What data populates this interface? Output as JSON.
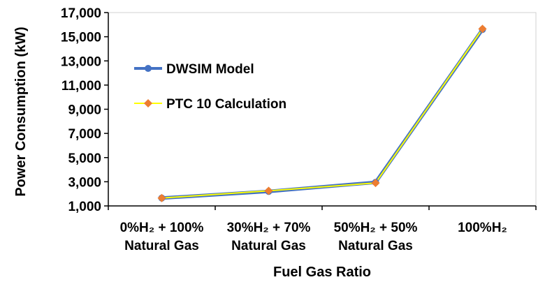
{
  "chart_data": {
    "type": "line",
    "title": "",
    "xlabel": "Fuel Gas Ratio",
    "ylabel": "Power Consumption (kW)",
    "ylim": [
      1000,
      17000
    ],
    "yticks": [
      1000,
      3000,
      5000,
      7000,
      9000,
      11000,
      13000,
      15000,
      17000
    ],
    "ytick_labels": [
      "1,000",
      "3,000",
      "5,000",
      "7,000",
      "9,000",
      "11,000",
      "13,000",
      "15,000",
      "17,000"
    ],
    "categories": [
      {
        "line1": "0%H₂ + 100%",
        "line2": "Natural Gas"
      },
      {
        "line1": "30%H₂ + 70%",
        "line2": "Natural Gas"
      },
      {
        "line1": "50%H₂ + 50%",
        "line2": "Natural Gas"
      },
      {
        "line1": "100%H₂",
        "line2": ""
      }
    ],
    "grid": false,
    "legend_position": "upper-left inside plot",
    "series": [
      {
        "name": "DWSIM Model",
        "color": "#4472C4",
        "marker": "circle",
        "values": [
          1650,
          2200,
          2950,
          15600
        ]
      },
      {
        "name": "PTC 10 Calculation",
        "color": "#FFFF00",
        "marker_color": "#ED7D31",
        "marker": "diamond",
        "values": [
          1650,
          2250,
          2900,
          15650
        ]
      }
    ]
  }
}
